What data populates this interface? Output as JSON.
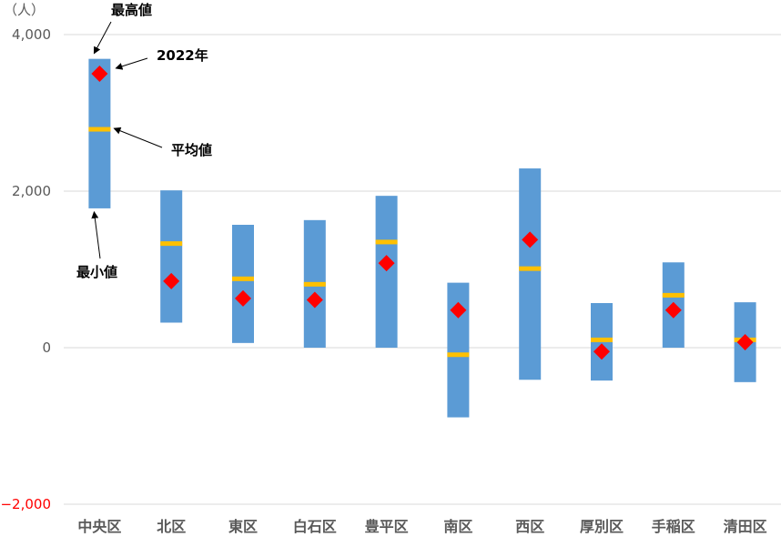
{
  "chart_data": {
    "type": "bar",
    "unit_label": "（人）",
    "categories": [
      "中央区",
      "北区",
      "東区",
      "白石区",
      "豊平区",
      "南区",
      "西区",
      "厚別区",
      "手稲区",
      "清田区"
    ],
    "ylim": [
      -2000,
      4000
    ],
    "yticks": [
      4000,
      2000,
      0,
      -2000
    ],
    "ytick_labels": [
      "4,000",
      "2,000",
      "0",
      "−2,000"
    ],
    "grid": true,
    "series": [
      {
        "values_min": [
          1780,
          320,
          60,
          0,
          0,
          -890,
          -410,
          -420,
          0,
          -440
        ],
        "values_max": [
          3690,
          2010,
          1570,
          1630,
          1940,
          830,
          2290,
          570,
          1090,
          580
        ]
      },
      {
        "values_mean": [
          2790,
          1330,
          880,
          810,
          1350,
          -90,
          1010,
          100,
          670,
          100
        ]
      },
      {
        "values_2022": [
          3500,
          850,
          630,
          610,
          1080,
          480,
          1380,
          -50,
          480,
          70
        ]
      }
    ],
    "colors": {
      "range": "#5b9bd5",
      "mean": "#ffc000",
      "year": "#ff0000"
    },
    "annotations": [
      {
        "label": "最高値",
        "target": "中央区"
      },
      {
        "label": "2022年",
        "target": "中央区"
      },
      {
        "label": "平均値",
        "target": "中央区"
      },
      {
        "label": "最小値",
        "target": "中央区"
      }
    ]
  }
}
